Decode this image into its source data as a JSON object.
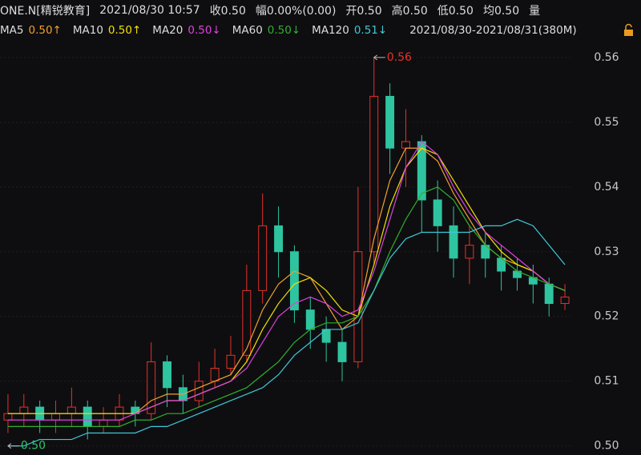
{
  "header": {
    "symbol": "ONE.N[精锐教育]",
    "time": "2021/08/30 10:57",
    "items": [
      "收0.50",
      "幅0.00%(0.00)",
      "开0.50",
      "高0.50",
      "低0.50",
      "均0.50",
      "量"
    ],
    "range": "2021/08/30-2021/08/31(380M)"
  },
  "chart_data": {
    "type": "candlestick",
    "up_color": "#e8312a",
    "down_color": "#2ec4a0",
    "open": [
      0.504,
      0.505,
      0.506,
      0.504,
      0.505,
      0.506,
      0.503,
      0.504,
      0.506,
      0.505,
      0.513,
      0.509,
      0.507,
      0.51,
      0.512,
      0.514,
      0.524,
      0.534,
      0.53,
      0.521,
      0.518,
      0.516,
      0.513,
      0.53,
      0.554,
      0.546,
      0.547,
      0.538,
      0.534,
      0.529,
      0.531,
      0.529,
      0.527,
      0.526,
      0.525,
      0.522
    ],
    "high": [
      0.508,
      0.508,
      0.507,
      0.507,
      0.509,
      0.507,
      0.506,
      0.508,
      0.507,
      0.516,
      0.514,
      0.511,
      0.513,
      0.515,
      0.517,
      0.528,
      0.539,
      0.537,
      0.531,
      0.523,
      0.52,
      0.518,
      0.54,
      0.56,
      0.556,
      0.552,
      0.548,
      0.541,
      0.537,
      0.534,
      0.533,
      0.531,
      0.529,
      0.528,
      0.526,
      0.525
    ],
    "low": [
      0.502,
      0.503,
      0.502,
      0.502,
      0.503,
      0.501,
      0.502,
      0.503,
      0.503,
      0.504,
      0.506,
      0.505,
      0.506,
      0.509,
      0.511,
      0.513,
      0.522,
      0.526,
      0.519,
      0.515,
      0.513,
      0.51,
      0.512,
      0.528,
      0.542,
      0.54,
      0.533,
      0.53,
      0.526,
      0.525,
      0.526,
      0.524,
      0.524,
      0.522,
      0.52,
      0.521
    ],
    "close": [
      0.505,
      0.506,
      0.504,
      0.505,
      0.506,
      0.503,
      0.504,
      0.506,
      0.505,
      0.513,
      0.509,
      0.507,
      0.51,
      0.512,
      0.514,
      0.524,
      0.534,
      0.53,
      0.521,
      0.518,
      0.516,
      0.513,
      0.53,
      0.554,
      0.546,
      0.547,
      0.538,
      0.534,
      0.529,
      0.531,
      0.529,
      0.527,
      0.526,
      0.525,
      0.522,
      0.523
    ],
    "series": [
      {
        "name": "MA5",
        "legend_label": "0.50↑",
        "color": "#f0a030",
        "values": [
          0.505,
          0.505,
          0.505,
          0.505,
          0.505,
          0.505,
          0.505,
          0.505,
          0.505,
          0.507,
          0.508,
          0.508,
          0.509,
          0.51,
          0.511,
          0.515,
          0.521,
          0.525,
          0.527,
          0.526,
          0.522,
          0.518,
          0.52,
          0.532,
          0.541,
          0.546,
          0.546,
          0.544,
          0.539,
          0.535,
          0.531,
          0.529,
          0.528,
          0.527,
          0.525,
          0.524
        ]
      },
      {
        "name": "MA10",
        "legend_label": "0.50↑",
        "color": "#f2e000",
        "values": [
          0.505,
          0.505,
          0.505,
          0.505,
          0.505,
          0.505,
          0.505,
          0.505,
          0.505,
          0.506,
          0.507,
          0.507,
          0.508,
          0.509,
          0.51,
          0.513,
          0.518,
          0.522,
          0.525,
          0.526,
          0.524,
          0.521,
          0.52,
          0.528,
          0.537,
          0.543,
          0.546,
          0.545,
          0.541,
          0.537,
          0.533,
          0.53,
          0.528,
          0.527,
          0.525,
          0.524
        ]
      },
      {
        "name": "MA20",
        "legend_label": "0.50↓",
        "color": "#e040e0",
        "values": [
          0.504,
          0.504,
          0.504,
          0.504,
          0.504,
          0.504,
          0.504,
          0.504,
          0.505,
          0.506,
          0.507,
          0.507,
          0.508,
          0.509,
          0.51,
          0.512,
          0.516,
          0.52,
          0.522,
          0.523,
          0.522,
          0.52,
          0.521,
          0.527,
          0.535,
          0.543,
          0.547,
          0.545,
          0.54,
          0.536,
          0.533,
          0.531,
          0.529,
          0.527,
          0.525,
          0.524
        ]
      },
      {
        "name": "MA60",
        "legend_label": "0.50↓",
        "color": "#30b030",
        "values": [
          0.503,
          0.503,
          0.503,
          0.503,
          0.503,
          0.503,
          0.503,
          0.503,
          0.504,
          0.504,
          0.505,
          0.505,
          0.506,
          0.507,
          0.508,
          0.509,
          0.511,
          0.513,
          0.516,
          0.518,
          0.519,
          0.519,
          0.52,
          0.524,
          0.53,
          0.535,
          0.539,
          0.54,
          0.538,
          0.534,
          0.531,
          0.529,
          0.527,
          0.526,
          0.525,
          0.524
        ]
      },
      {
        "name": "MA120",
        "legend_label": "0.51↓",
        "color": "#40c8d8",
        "values": [
          0.5,
          0.5,
          0.501,
          0.501,
          0.501,
          0.502,
          0.502,
          0.502,
          0.502,
          0.503,
          0.503,
          0.504,
          0.505,
          0.506,
          0.507,
          0.508,
          0.509,
          0.511,
          0.514,
          0.516,
          0.518,
          0.518,
          0.519,
          0.524,
          0.529,
          0.532,
          0.533,
          0.533,
          0.533,
          0.533,
          0.534,
          0.534,
          0.535,
          0.534,
          0.531,
          0.528
        ]
      }
    ],
    "annotations": [
      {
        "label": "0.56",
        "value": 0.56,
        "color": "#e8312a",
        "index": 23
      },
      {
        "label": "0.50",
        "value": 0.5,
        "color": "#2ec46a",
        "index": 0
      }
    ],
    "ylim": [
      0.4986,
      0.5627
    ],
    "yticks": [
      {
        "value": 0.5,
        "label": "0.50"
      },
      0.51,
      0.52,
      0.53,
      0.54,
      0.55,
      0.56
    ],
    "grid": true
  }
}
